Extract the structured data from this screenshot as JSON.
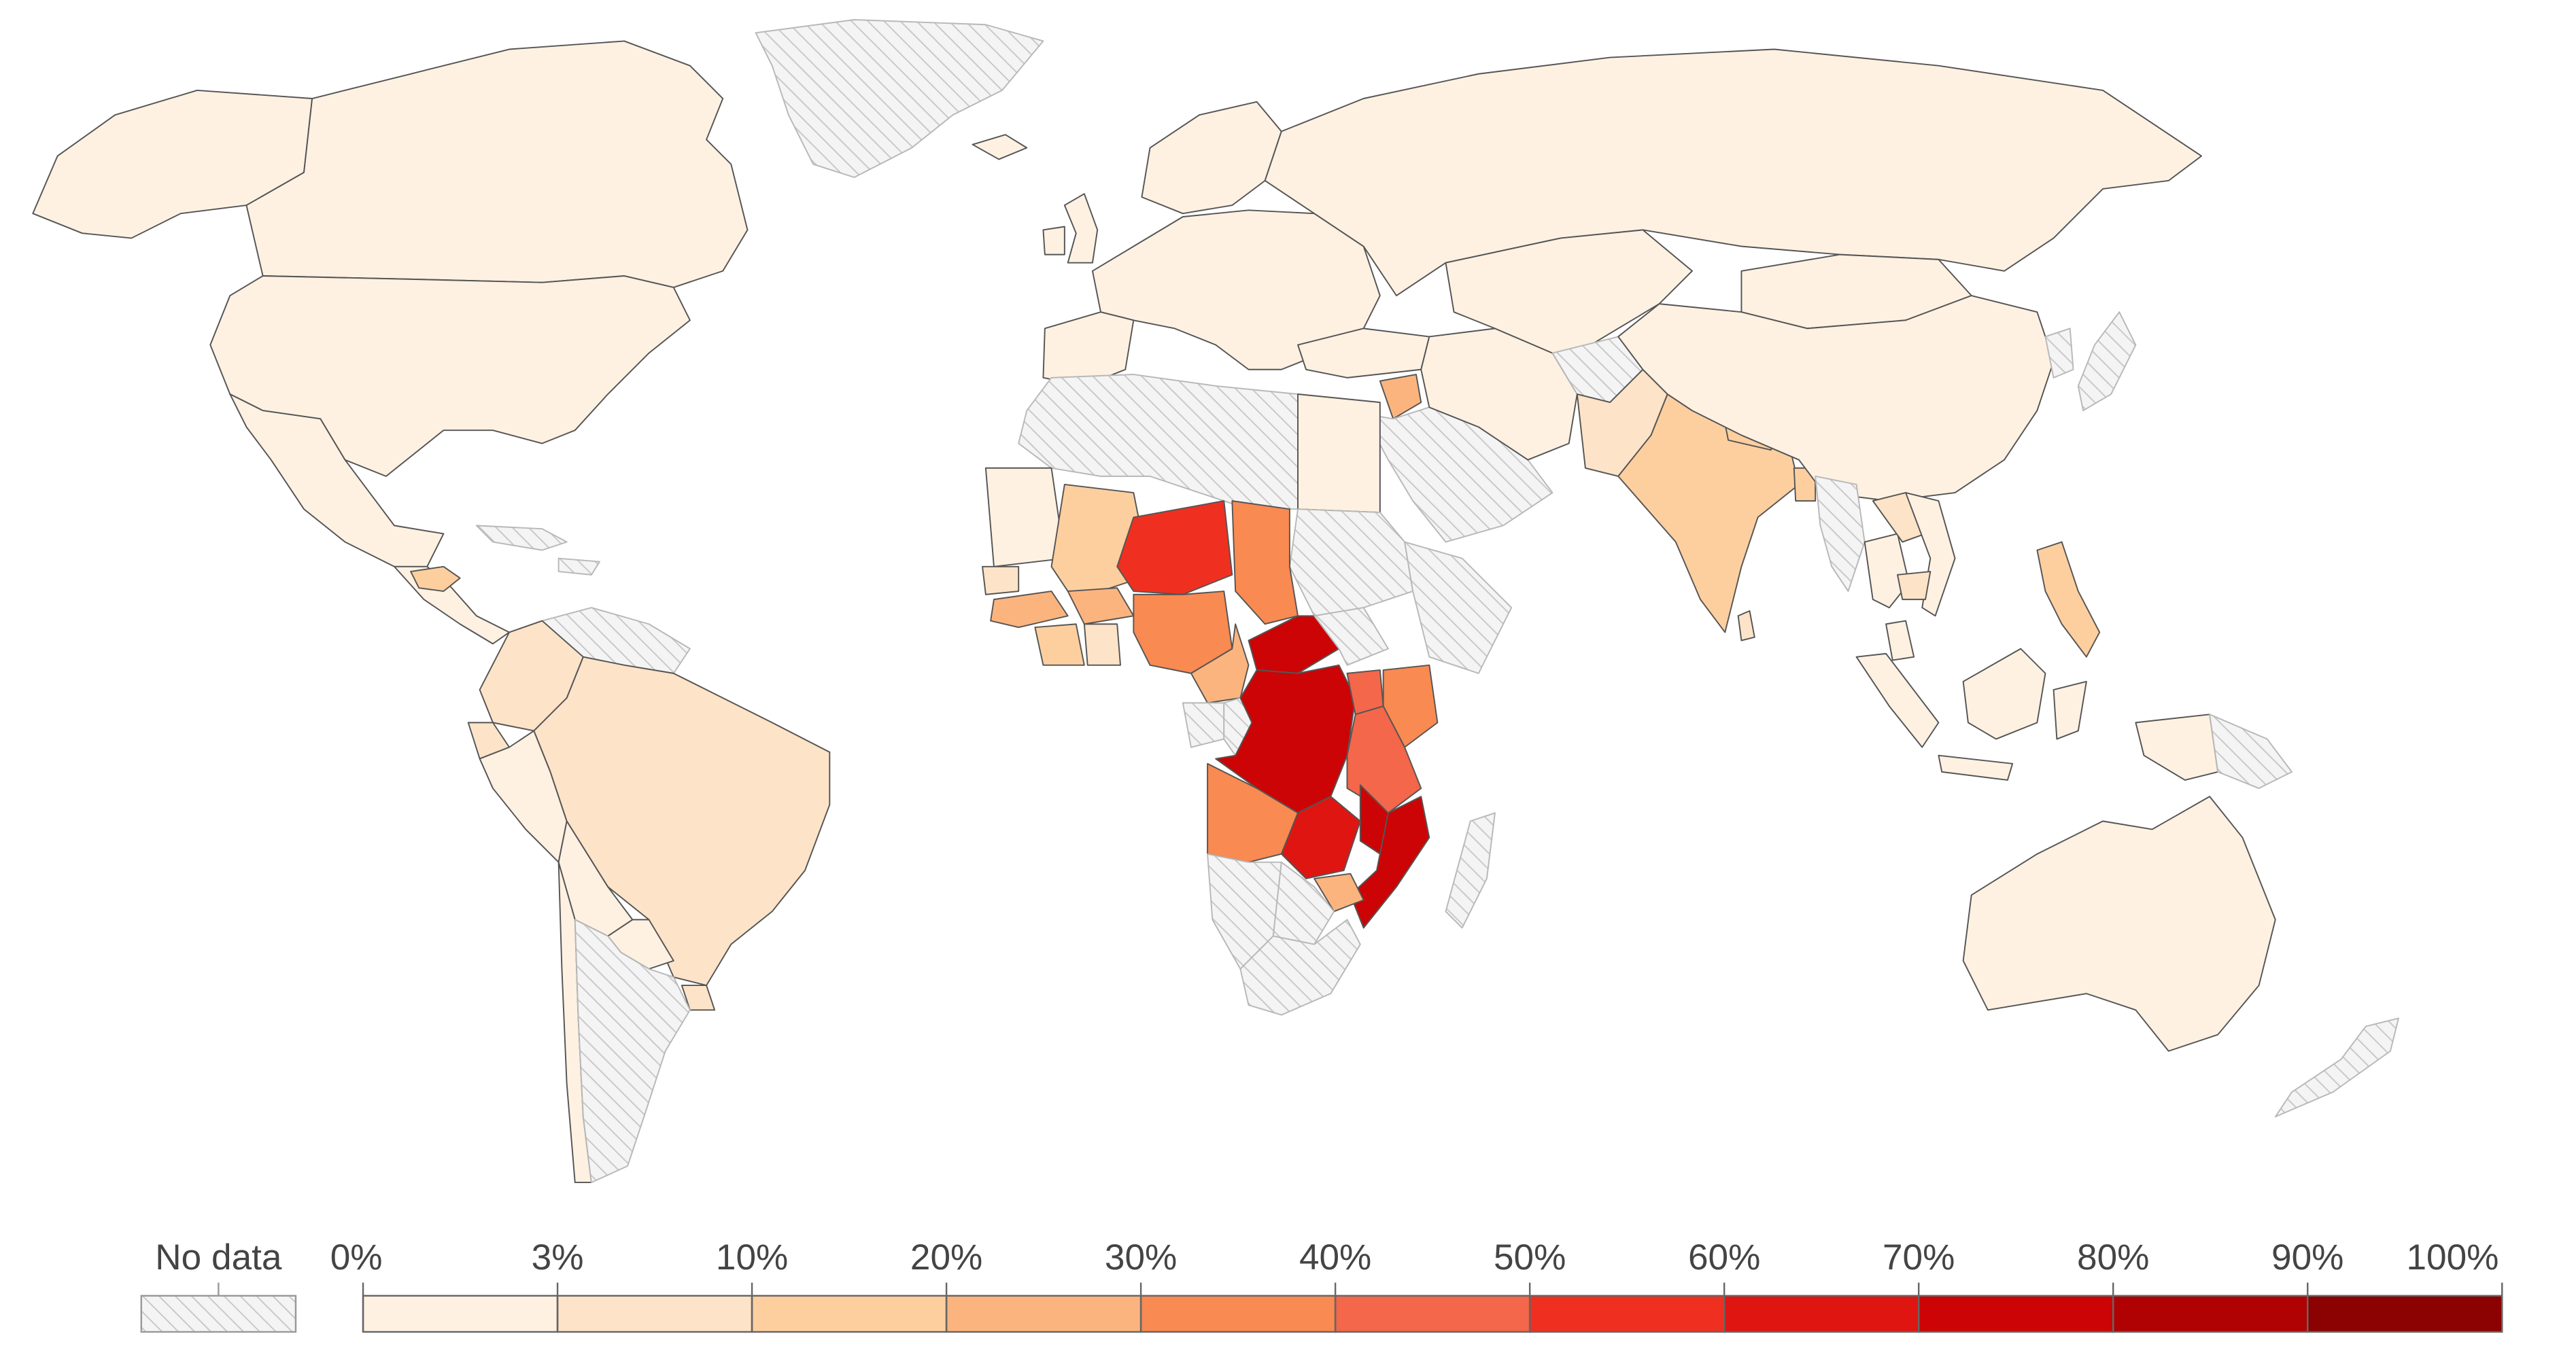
{
  "legend": {
    "no_data_label": "No data",
    "bins": [
      "0%",
      "3%",
      "10%",
      "20%",
      "30%",
      "40%",
      "50%",
      "60%",
      "70%",
      "80%",
      "90%",
      "100%"
    ],
    "colors": [
      "#fef1e2",
      "#fde3c8",
      "#fdcf9f",
      "#fcb47e",
      "#f98a52",
      "#f4674a",
      "#ef3020",
      "#df1512",
      "#cc0405",
      "#b00202",
      "#8c0101"
    ]
  },
  "map_style": {
    "ocean": "#ffffff",
    "border": "#555555",
    "no_data_fill": "#f4f4f4",
    "hatch": "#c8c8c8"
  },
  "regions": [
    {
      "id": "canada",
      "bin": 0
    },
    {
      "id": "alaska",
      "bin": 0
    },
    {
      "id": "usa",
      "bin": 0
    },
    {
      "id": "mexico",
      "bin": 0
    },
    {
      "id": "central-america",
      "bin": 0
    },
    {
      "id": "honduras",
      "bin": 2
    },
    {
      "id": "caribbean",
      "bin": -1
    },
    {
      "id": "greenland",
      "bin": -1
    },
    {
      "id": "colombia",
      "bin": 1
    },
    {
      "id": "venezuela",
      "bin": -1
    },
    {
      "id": "ecuador",
      "bin": 1
    },
    {
      "id": "peru",
      "bin": 0
    },
    {
      "id": "brazil",
      "bin": 1
    },
    {
      "id": "bolivia",
      "bin": 0
    },
    {
      "id": "paraguay",
      "bin": 0
    },
    {
      "id": "uruguay",
      "bin": 1
    },
    {
      "id": "chile",
      "bin": 0
    },
    {
      "id": "argentina",
      "bin": -1
    },
    {
      "id": "europe",
      "bin": 0
    },
    {
      "id": "uk",
      "bin": 0
    },
    {
      "id": "ireland",
      "bin": 0
    },
    {
      "id": "iceland",
      "bin": 0
    },
    {
      "id": "iberia",
      "bin": 0
    },
    {
      "id": "scandinavia",
      "bin": 0
    },
    {
      "id": "russia",
      "bin": 0
    },
    {
      "id": "turkey",
      "bin": 0
    },
    {
      "id": "syria",
      "bin": 3
    },
    {
      "id": "middle-east",
      "bin": -1
    },
    {
      "id": "iran",
      "bin": 0
    },
    {
      "id": "central-asia",
      "bin": 0
    },
    {
      "id": "afghanistan",
      "bin": -1
    },
    {
      "id": "pakistan",
      "bin": 1
    },
    {
      "id": "india",
      "bin": 2
    },
    {
      "id": "nepal",
      "bin": 2
    },
    {
      "id": "bangladesh",
      "bin": 2
    },
    {
      "id": "sri-lanka",
      "bin": 1
    },
    {
      "id": "china",
      "bin": 0
    },
    {
      "id": "mongolia",
      "bin": 0
    },
    {
      "id": "korea",
      "bin": -1
    },
    {
      "id": "japan",
      "bin": -1
    },
    {
      "id": "myanmar",
      "bin": -1
    },
    {
      "id": "thailand",
      "bin": 0
    },
    {
      "id": "laos",
      "bin": 1
    },
    {
      "id": "vietnam",
      "bin": 0
    },
    {
      "id": "cambodia",
      "bin": 1
    },
    {
      "id": "malaysia",
      "bin": 0
    },
    {
      "id": "sumatra",
      "bin": 0
    },
    {
      "id": "java",
      "bin": 0
    },
    {
      "id": "borneo",
      "bin": 0
    },
    {
      "id": "sulawesi",
      "bin": 0
    },
    {
      "id": "philippines",
      "bin": 2
    },
    {
      "id": "papua",
      "bin": 0
    },
    {
      "id": "png",
      "bin": -1
    },
    {
      "id": "australia",
      "bin": 0
    },
    {
      "id": "new-zealand",
      "bin": -1
    },
    {
      "id": "north-africa",
      "bin": -1
    },
    {
      "id": "egypt",
      "bin": 0
    },
    {
      "id": "sudan",
      "bin": -1
    },
    {
      "id": "ethiopia",
      "bin": -1
    },
    {
      "id": "mauritania",
      "bin": 0
    },
    {
      "id": "mali",
      "bin": 2
    },
    {
      "id": "niger",
      "bin": 6
    },
    {
      "id": "chad",
      "bin": 4
    },
    {
      "id": "senegal",
      "bin": 1
    },
    {
      "id": "guinea",
      "bin": 3
    },
    {
      "id": "burkina-faso",
      "bin": 3
    },
    {
      "id": "ivory-coast",
      "bin": 2
    },
    {
      "id": "ghana",
      "bin": 1
    },
    {
      "id": "nigeria",
      "bin": 4
    },
    {
      "id": "cameroon",
      "bin": 3
    },
    {
      "id": "car",
      "bin": 8
    },
    {
      "id": "south-sudan",
      "bin": -1
    },
    {
      "id": "gabon",
      "bin": -1
    },
    {
      "id": "congo",
      "bin": -1
    },
    {
      "id": "drc",
      "bin": 8
    },
    {
      "id": "uganda",
      "bin": 5
    },
    {
      "id": "kenya",
      "bin": 4
    },
    {
      "id": "tanzania",
      "bin": 5
    },
    {
      "id": "angola",
      "bin": 4
    },
    {
      "id": "zambia",
      "bin": 7
    },
    {
      "id": "malawi",
      "bin": 8
    },
    {
      "id": "mozambique",
      "bin": 8
    },
    {
      "id": "zimbabwe",
      "bin": 3
    },
    {
      "id": "namibia",
      "bin": -1
    },
    {
      "id": "botswana",
      "bin": -1
    },
    {
      "id": "south-africa",
      "bin": -1
    },
    {
      "id": "madagascar",
      "bin": -1
    }
  ]
}
